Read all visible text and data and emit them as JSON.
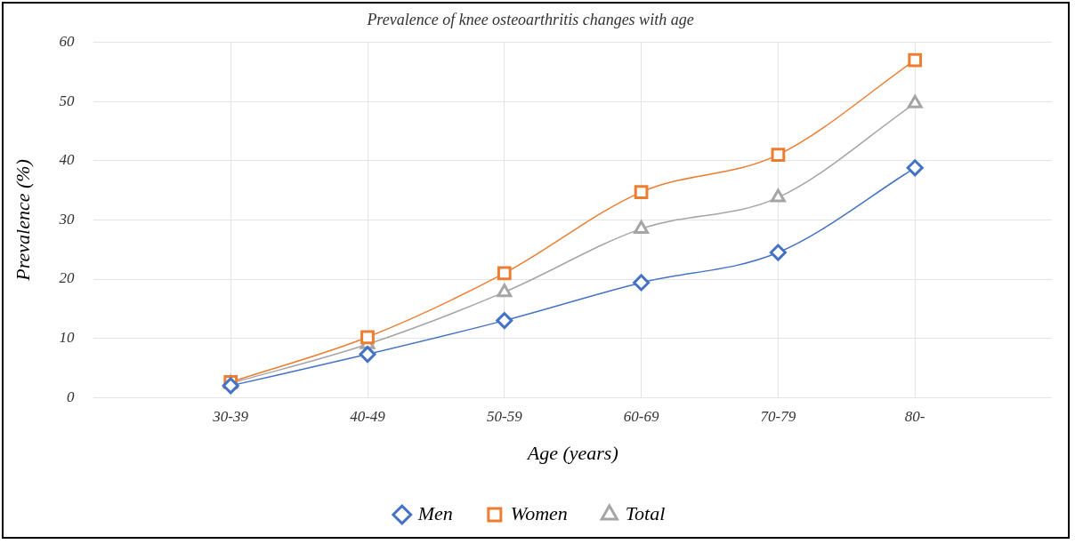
{
  "chart_data": {
    "type": "line",
    "title": "Prevalence of knee osteoarthritis changes with age",
    "xlabel": "Age (years)",
    "ylabel": "Prevalence (%)",
    "categories": [
      "30-39",
      "40-49",
      "50-59",
      "60-69",
      "70-79",
      "80-"
    ],
    "series": [
      {
        "name": "Men",
        "color": "#4472c4",
        "marker": "diamond",
        "values": [
          2.0,
          7.3,
          13.0,
          19.4,
          24.5,
          38.8
        ]
      },
      {
        "name": "Women",
        "color": "#ed7d31",
        "marker": "square",
        "values": [
          2.6,
          10.2,
          21.0,
          34.7,
          41.0,
          57.0
        ]
      },
      {
        "name": "Total",
        "color": "#a5a5a5",
        "marker": "triangle",
        "values": [
          2.4,
          9.0,
          17.8,
          28.5,
          33.8,
          49.7
        ]
      }
    ],
    "ylim": [
      0,
      60
    ],
    "yticks": [
      0,
      10,
      20,
      30,
      40,
      50,
      60
    ],
    "grid": true,
    "legend": "bottom",
    "line_style": "solid"
  }
}
